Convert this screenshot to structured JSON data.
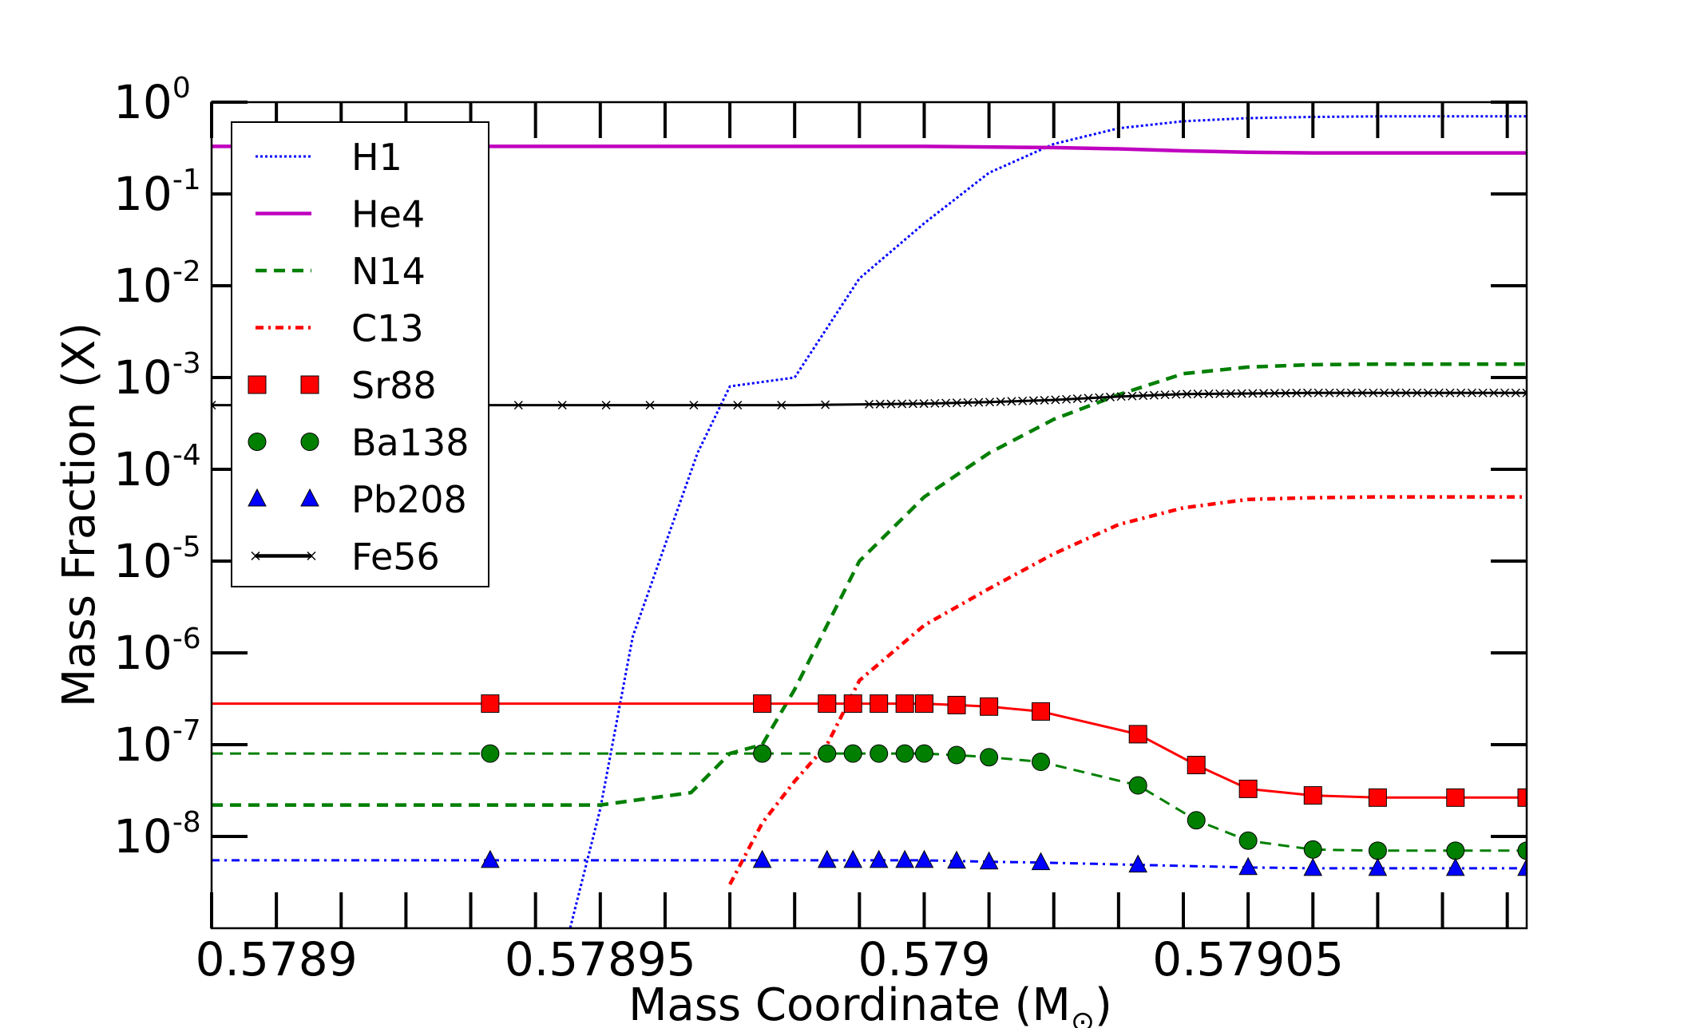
{
  "chart_data": {
    "type": "line",
    "xlabel": "Mass Coordinate (M",
    "xlabel_sub": "⊙",
    "xlabel_close": ")",
    "ylabel": "Mass Fraction (X)",
    "xlim": [
      0.57889,
      0.579093
    ],
    "ylim": [
      1e-09,
      1
    ],
    "yscale": "log",
    "xticks": [
      {
        "value": 0.5789,
        "label": "0.5789"
      },
      {
        "value": 0.57895,
        "label": "0.57895"
      },
      {
        "value": 0.579,
        "label": "0.579"
      },
      {
        "value": 0.57905,
        "label": "0.57905"
      }
    ],
    "yticks": [
      {
        "value": 1,
        "base": "10",
        "exp": "0"
      },
      {
        "value": 0.1,
        "base": "10",
        "exp": "-1"
      },
      {
        "value": 0.01,
        "base": "10",
        "exp": "-2"
      },
      {
        "value": 0.001,
        "base": "10",
        "exp": "-3"
      },
      {
        "value": 0.0001,
        "base": "10",
        "exp": "-4"
      },
      {
        "value": 1e-05,
        "base": "10",
        "exp": "-5"
      },
      {
        "value": 1e-06,
        "base": "10",
        "exp": "-6"
      },
      {
        "value": 1e-07,
        "base": "10",
        "exp": "-7"
      },
      {
        "value": 1e-08,
        "base": "10",
        "exp": "-8"
      }
    ],
    "legend_position": "top-left",
    "series": [
      {
        "name": "H1",
        "color": "#0000ff",
        "style": "dotted",
        "marker": "none",
        "x": [
          0.578945,
          0.57895,
          0.578955,
          0.578965,
          0.57897,
          0.57898,
          0.57899,
          0.579,
          0.57901,
          0.57902,
          0.57903,
          0.57904,
          0.57905,
          0.57906,
          0.57907,
          0.57908,
          0.579093
        ],
        "y": [
          8e-10,
          2e-08,
          1.5e-06,
          0.00015,
          0.0008,
          0.001,
          0.012,
          0.048,
          0.17,
          0.35,
          0.52,
          0.62,
          0.67,
          0.69,
          0.7,
          0.7,
          0.7
        ]
      },
      {
        "name": "He4",
        "color": "#bf00bf",
        "style": "solid",
        "marker": "none",
        "x": [
          0.57889,
          0.5789,
          0.57895,
          0.579,
          0.57902,
          0.57903,
          0.57904,
          0.57905,
          0.57906,
          0.57907,
          0.57908,
          0.579093
        ],
        "y": [
          0.33,
          0.33,
          0.33,
          0.33,
          0.32,
          0.31,
          0.295,
          0.285,
          0.28,
          0.28,
          0.28,
          0.28
        ]
      },
      {
        "name": "N14",
        "color": "#007f00",
        "style": "dashed",
        "marker": "none",
        "x": [
          0.57889,
          0.57892,
          0.57895,
          0.578964,
          0.57897,
          0.578975,
          0.57898,
          0.578985,
          0.57899,
          0.579,
          0.57901,
          0.57902,
          0.57903,
          0.57904,
          0.57905,
          0.57906,
          0.57907,
          0.57908,
          0.579093
        ],
        "y": [
          2.2e-08,
          2.2e-08,
          2.2e-08,
          3e-08,
          8e-08,
          1e-07,
          4e-07,
          2e-06,
          1e-05,
          5e-05,
          0.00015,
          0.00035,
          0.00065,
          0.0011,
          0.0013,
          0.00138,
          0.0014,
          0.0014,
          0.0014
        ]
      },
      {
        "name": "C13",
        "color": "#ff0000",
        "style": "dashdot",
        "marker": "none",
        "x": [
          0.57897,
          0.578975,
          0.57898,
          0.578985,
          0.57899,
          0.579,
          0.57901,
          0.57902,
          0.57903,
          0.57904,
          0.57905,
          0.57906,
          0.57907,
          0.57908,
          0.579093
        ],
        "y": [
          3e-09,
          1.4e-08,
          4e-08,
          1e-07,
          5e-07,
          2e-06,
          5e-06,
          1.2e-05,
          2.5e-05,
          3.8e-05,
          4.7e-05,
          4.9e-05,
          5e-05,
          5e-05,
          5e-05
        ]
      },
      {
        "name": "Sr88",
        "color": "#ff0000",
        "style": "solid",
        "marker": "square",
        "x": [
          0.57889,
          0.578933,
          0.578975,
          0.578985,
          0.578989,
          0.578993,
          0.578997,
          0.579,
          0.579005,
          0.57901,
          0.579018,
          0.579033,
          0.579042,
          0.57905,
          0.57906,
          0.57907,
          0.579082,
          0.579093
        ],
        "y": [
          2.8e-07,
          2.8e-07,
          2.8e-07,
          2.8e-07,
          2.8e-07,
          2.8e-07,
          2.8e-07,
          2.8e-07,
          2.7e-07,
          2.6e-07,
          2.3e-07,
          1.3e-07,
          6e-08,
          3.3e-08,
          2.8e-08,
          2.65e-08,
          2.65e-08,
          2.65e-08
        ]
      },
      {
        "name": "Ba138",
        "color": "#007f00",
        "style": "dashed",
        "marker": "circle",
        "x": [
          0.57889,
          0.578933,
          0.578975,
          0.578985,
          0.578989,
          0.578993,
          0.578997,
          0.579,
          0.579005,
          0.57901,
          0.579018,
          0.579033,
          0.579042,
          0.57905,
          0.57906,
          0.57907,
          0.579082,
          0.579093
        ],
        "y": [
          8e-08,
          8e-08,
          8e-08,
          8e-08,
          8e-08,
          8e-08,
          8e-08,
          8e-08,
          7.7e-08,
          7.3e-08,
          6.5e-08,
          3.6e-08,
          1.5e-08,
          9e-09,
          7.2e-09,
          7e-09,
          7e-09,
          7e-09
        ]
      },
      {
        "name": "Pb208",
        "color": "#0000ff",
        "style": "dashdot",
        "marker": "triangle",
        "x": [
          0.57889,
          0.578933,
          0.578975,
          0.578985,
          0.578989,
          0.578993,
          0.578997,
          0.579,
          0.579005,
          0.57901,
          0.579018,
          0.579033,
          0.57905,
          0.57906,
          0.57907,
          0.579082,
          0.579093
        ],
        "y": [
          5.5e-09,
          5.5e-09,
          5.5e-09,
          5.5e-09,
          5.5e-09,
          5.5e-09,
          5.5e-09,
          5.5e-09,
          5.4e-09,
          5.3e-09,
          5.2e-09,
          4.9e-09,
          4.6e-09,
          4.5e-09,
          4.5e-09,
          4.5e-09,
          4.5e-09
        ]
      },
      {
        "name": "Fe56",
        "color": "#000000",
        "style": "solid",
        "marker": "x",
        "x": [
          0.57889,
          0.5789,
          0.57895,
          0.57898,
          0.579,
          0.57901,
          0.57902,
          0.57903,
          0.57904,
          0.57905,
          0.57906,
          0.57907,
          0.57908,
          0.579093
        ],
        "y": [
          0.0005,
          0.0005,
          0.0005,
          0.0005,
          0.00052,
          0.00054,
          0.00057,
          0.00062,
          0.00066,
          0.00067,
          0.00068,
          0.00068,
          0.00068,
          0.00068
        ]
      }
    ]
  }
}
